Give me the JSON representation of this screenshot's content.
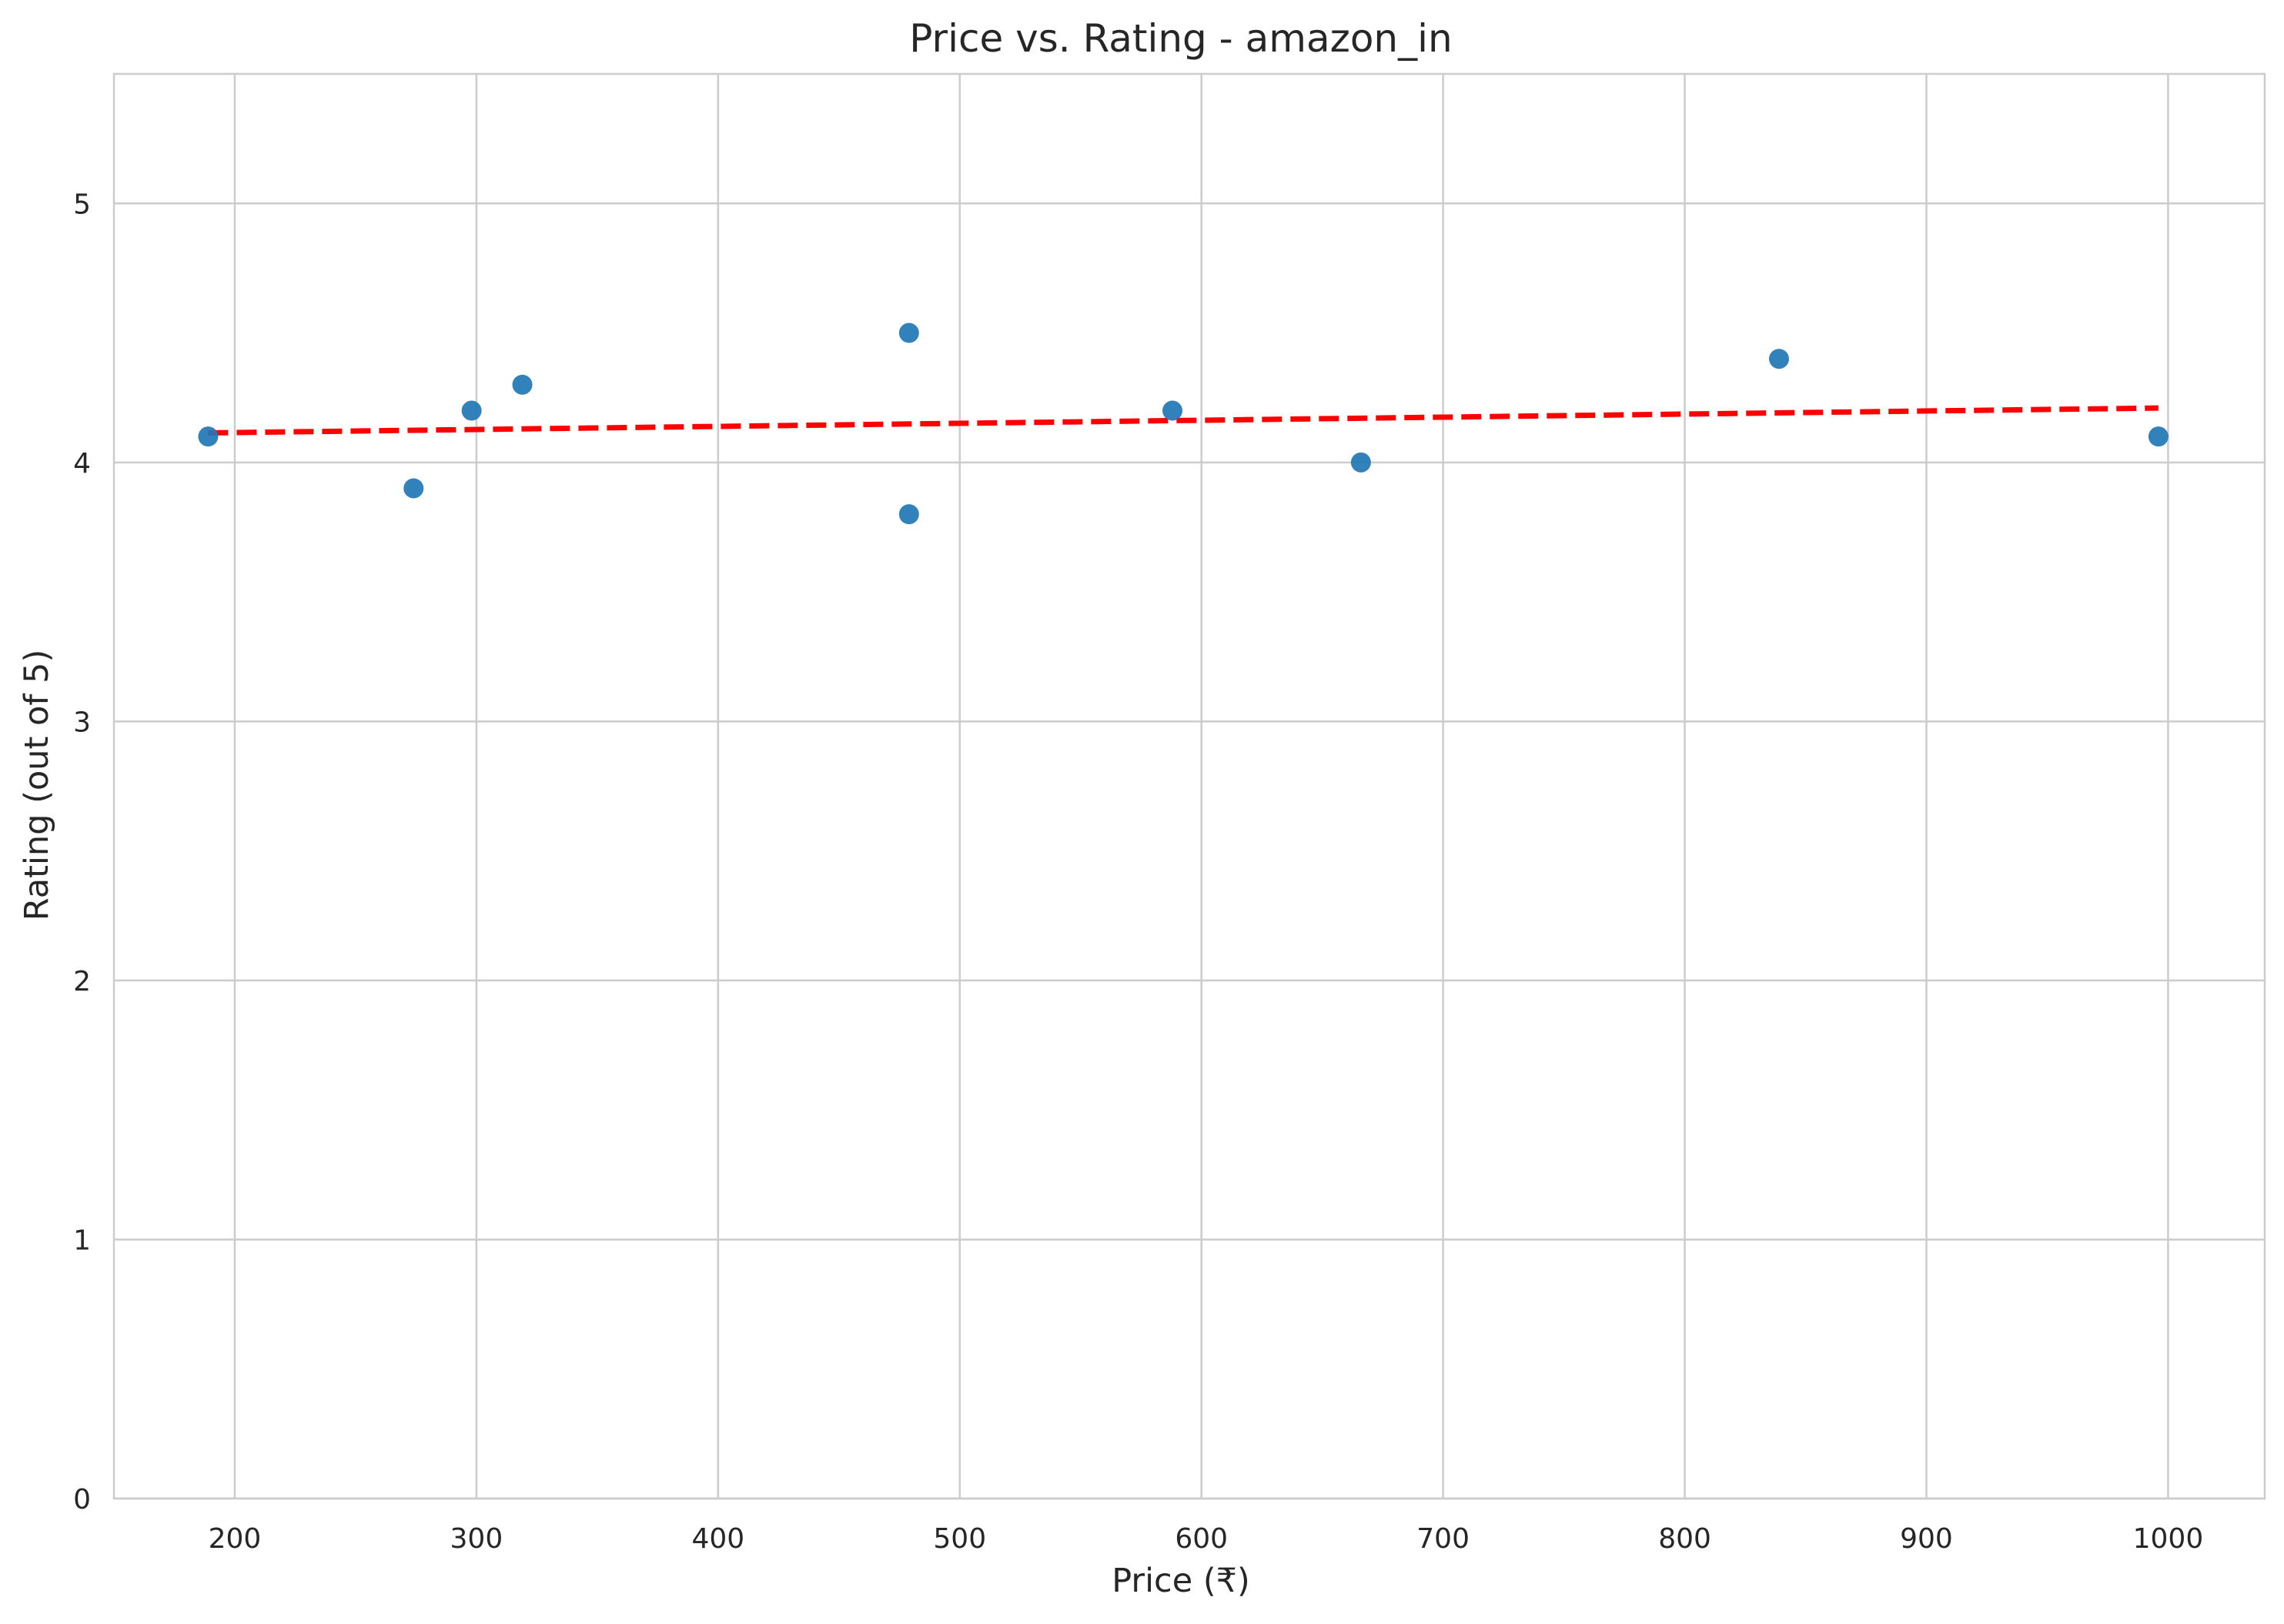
{
  "chart_data": {
    "type": "scatter",
    "title": "Price vs. Rating - amazon_in",
    "xlabel": "Price (₹)",
    "ylabel": "Rating (out of 5)",
    "xlim": [
      150,
      1040
    ],
    "ylim": [
      0,
      5.5
    ],
    "xticks": [
      200,
      300,
      400,
      500,
      600,
      700,
      800,
      900,
      1000
    ],
    "yticks": [
      0,
      1,
      2,
      3,
      4,
      5
    ],
    "grid": true,
    "points": [
      {
        "x": 189,
        "y": 4.1
      },
      {
        "x": 274,
        "y": 3.9
      },
      {
        "x": 298,
        "y": 4.2
      },
      {
        "x": 319,
        "y": 4.3
      },
      {
        "x": 479,
        "y": 4.5
      },
      {
        "x": 479,
        "y": 3.8
      },
      {
        "x": 588,
        "y": 4.2
      },
      {
        "x": 666,
        "y": 4.0
      },
      {
        "x": 839,
        "y": 4.4
      },
      {
        "x": 996,
        "y": 4.1
      }
    ],
    "trendline": {
      "style": "dashed",
      "x": [
        189,
        996
      ],
      "y": [
        4.114,
        4.21
      ]
    },
    "colors": {
      "points": "#1f77b4",
      "trendline": "#ff0000",
      "grid": "#cccccc",
      "axes": "#cccccc"
    }
  }
}
